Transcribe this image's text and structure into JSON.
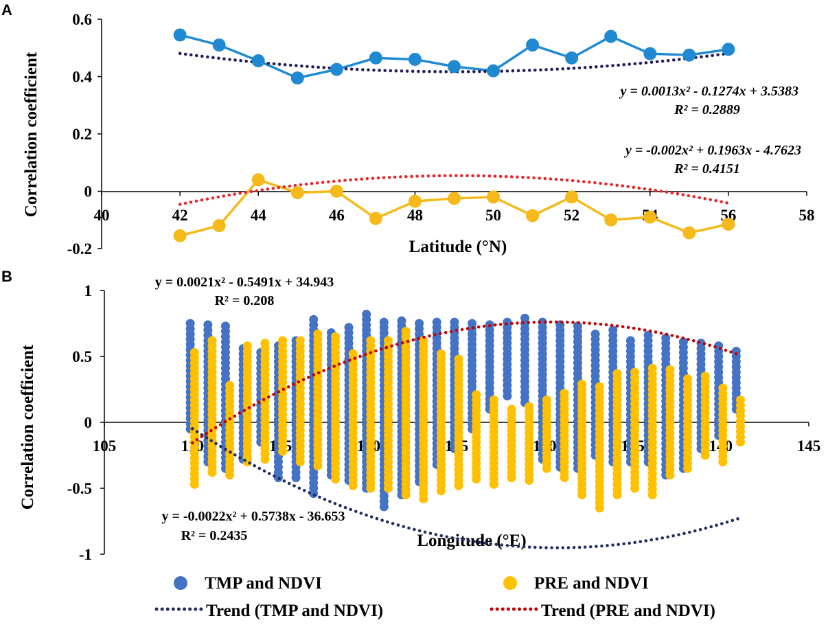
{
  "chart_data": [
    {
      "panel_label": "A",
      "type": "line",
      "xlabel": "Latitude (°N)",
      "ylabel": "Correlation coefficient",
      "xlim": [
        40,
        58
      ],
      "ylim": [
        -0.2,
        0.6
      ],
      "xticks": [
        "40",
        "42",
        "44",
        "46",
        "48",
        "50",
        "52",
        "54",
        "56",
        "58"
      ],
      "yticks": [
        "-0.2",
        "0",
        "0.2",
        "0.4",
        "0.6"
      ],
      "x": [
        42,
        43,
        44,
        45,
        46,
        47,
        48,
        49,
        50,
        51,
        52,
        53,
        54,
        55,
        56
      ],
      "series": [
        {
          "name": "TMP and NDVI",
          "color": "#1f8ad2",
          "values": [
            0.545,
            0.51,
            0.455,
            0.395,
            0.425,
            0.465,
            0.46,
            0.435,
            0.42,
            0.51,
            0.465,
            0.54,
            0.48,
            0.475,
            0.495
          ],
          "trend": {
            "coeffs": [
              0.0013,
              -0.1274,
              3.5383
            ],
            "color": "#1f1b5e"
          },
          "equation": "y = 0.0013x² - 0.1274x + 3.5383",
          "r2": "R² = 0.2889"
        },
        {
          "name": "PRE and NDVI",
          "color": "#f5b919",
          "values": [
            -0.155,
            -0.12,
            0.04,
            -0.005,
            0.0,
            -0.095,
            -0.035,
            -0.025,
            -0.02,
            -0.085,
            -0.02,
            -0.1,
            -0.09,
            -0.145,
            -0.115
          ],
          "trend": {
            "coeffs": [
              -0.002,
              0.1963,
              -4.7623
            ],
            "color": "#e6262b"
          },
          "equation": "y = -0.002x² + 0.1963x - 4.7623",
          "r2": "R² = 0.4151"
        }
      ]
    },
    {
      "panel_label": "B",
      "type": "scatter",
      "xlabel": "Longitude (°E)",
      "ylabel": "Correlation coefficient",
      "xlim": [
        105,
        145
      ],
      "ylim": [
        -1,
        1
      ],
      "xticks": [
        "105",
        "110",
        "115",
        "120",
        "125",
        "130",
        "135",
        "140",
        "145"
      ],
      "yticks": [
        "-1",
        "-0.5",
        "0",
        "0.5",
        "1"
      ],
      "longitudes": [
        110,
        111,
        112,
        113,
        114,
        115,
        116,
        117,
        118,
        119,
        120,
        121,
        122,
        123,
        124,
        125,
        126,
        127,
        128,
        129,
        130,
        131,
        132,
        133,
        134,
        135,
        136,
        137,
        138,
        139,
        140,
        141
      ],
      "series": [
        {
          "name": "TMP and NDVI",
          "color": "#4472c4",
          "min": [
            -0.05,
            -0.3,
            -0.35,
            -0.28,
            -0.15,
            -0.42,
            -0.42,
            -0.54,
            -0.4,
            -0.44,
            -0.5,
            -0.64,
            -0.55,
            -0.45,
            -0.32,
            -0.2,
            -0.05,
            0.1,
            0.2,
            0.15,
            -0.28,
            -0.34,
            -0.35,
            -0.25,
            -0.3,
            -0.3,
            -0.3,
            -0.4,
            -0.35,
            -0.2,
            -0.1,
            0.1
          ],
          "max": [
            0.77,
            0.75,
            0.73,
            0.56,
            0.55,
            0.6,
            0.65,
            0.8,
            0.7,
            0.73,
            0.82,
            0.78,
            0.78,
            0.77,
            0.77,
            0.77,
            0.76,
            0.77,
            0.76,
            0.8,
            0.76,
            0.77,
            0.74,
            0.7,
            0.72,
            0.65,
            0.68,
            0.67,
            0.63,
            0.63,
            0.59,
            0.57
          ],
          "trend": {
            "coeffs": [
              0.0021,
              -0.5491,
              34.943
            ],
            "color": "#1f2e5e"
          },
          "equation": "y = 0.0021x² - 0.5491x + 34.943",
          "r2": "R² = 0.208"
        },
        {
          "name": "PRE and NDVI",
          "color": "#ffc000",
          "min": [
            -0.47,
            -0.38,
            -0.4,
            -0.3,
            -0.28,
            -0.22,
            -0.3,
            -0.33,
            -0.43,
            -0.48,
            -0.5,
            -0.5,
            -0.55,
            -0.58,
            -0.52,
            -0.48,
            -0.43,
            -0.47,
            -0.42,
            -0.44,
            -0.35,
            -0.42,
            -0.55,
            -0.65,
            -0.55,
            -0.5,
            -0.55,
            -0.4,
            -0.35,
            -0.25,
            -0.3,
            -0.15
          ],
          "max": [
            0.55,
            0.62,
            0.3,
            0.6,
            0.62,
            0.62,
            0.62,
            0.7,
            0.68,
            0.55,
            0.62,
            0.62,
            0.7,
            0.64,
            0.55,
            0.5,
            0.22,
            0.2,
            0.12,
            0.12,
            0.2,
            0.25,
            0.32,
            0.3,
            0.38,
            0.4,
            0.42,
            0.4,
            0.33,
            0.35,
            0.28,
            0.18
          ],
          "trend": {
            "coeffs": [
              -0.0022,
              0.5738,
              -36.653
            ],
            "color": "#c00000"
          },
          "equation": "y = -0.0022x² + 0.5738x - 36.653",
          "r2": "R² = 0.2435"
        }
      ]
    }
  ],
  "legend": {
    "items": [
      {
        "label": "TMP and NDVI",
        "kind": "marker",
        "color": "#4472c4"
      },
      {
        "label": "PRE and NDVI",
        "kind": "marker",
        "color": "#ffc000"
      },
      {
        "label": "Trend (TMP and NDVI)",
        "kind": "dotted",
        "color": "#1f2e5e"
      },
      {
        "label": "Trend (PRE and NDVI)",
        "kind": "dotted",
        "color": "#c00000"
      }
    ]
  }
}
